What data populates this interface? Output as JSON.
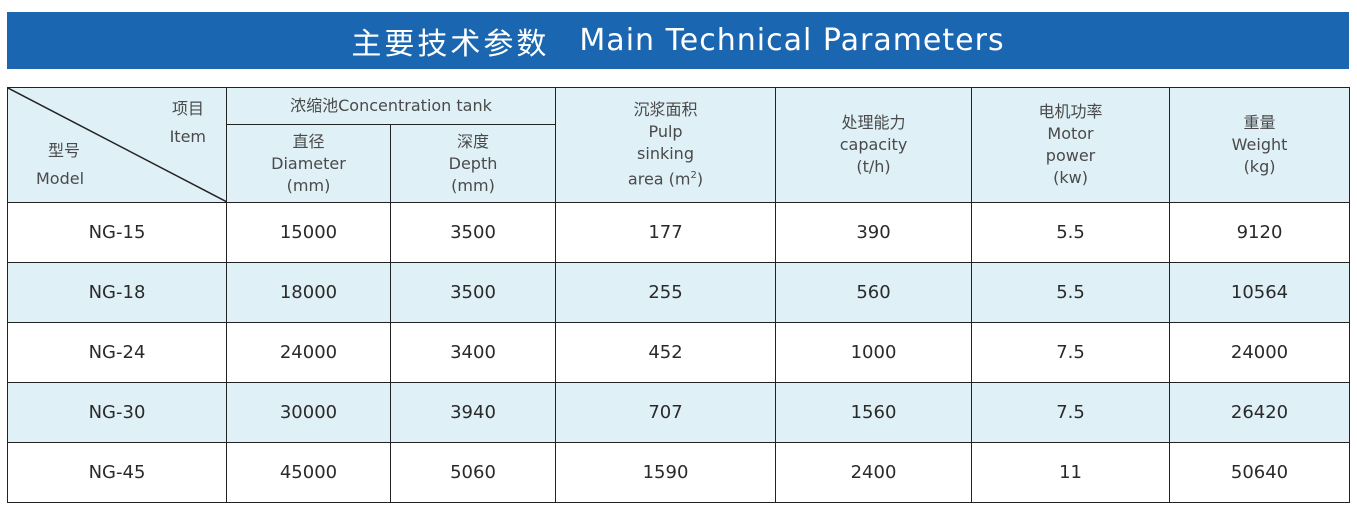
{
  "banner": {
    "title_zh": "主要技术参数",
    "title_en": "Main Technical Parameters"
  },
  "header": {
    "corner": {
      "item_zh": "项目",
      "item_en": "Item",
      "model_zh": "型号",
      "model_en": "Model"
    },
    "concentration_tank": "浓缩池Concentration tank",
    "diameter": {
      "zh": "直径",
      "en": "Diameter",
      "unit": "(mm)"
    },
    "depth": {
      "zh": "深度",
      "en": "Depth",
      "unit": "(mm)"
    },
    "pulp_area": {
      "zh": "沉浆面积",
      "en1": "Pulp",
      "en2": "sinking",
      "en3": "area (m",
      "sup": "2",
      "close": ")"
    },
    "capacity": {
      "zh": "处理能力",
      "en": "capacity",
      "unit": "(t/h)"
    },
    "motor_power": {
      "zh": "电机功率",
      "en1": "Motor",
      "en2": "power",
      "unit": "(kw)"
    },
    "weight": {
      "zh": "重量",
      "en": "Weight",
      "unit": "(kg)"
    }
  },
  "rows": [
    {
      "model": "NG-15",
      "diameter": "15000",
      "depth": "3500",
      "area": "177",
      "capacity": "390",
      "power": "5.5",
      "weight": "9120"
    },
    {
      "model": "NG-18",
      "diameter": "18000",
      "depth": "3500",
      "area": "255",
      "capacity": "560",
      "power": "5.5",
      "weight": "10564"
    },
    {
      "model": "NG-24",
      "diameter": "24000",
      "depth": "3400",
      "area": "452",
      "capacity": "1000",
      "power": "7.5",
      "weight": "24000"
    },
    {
      "model": "NG-30",
      "diameter": "30000",
      "depth": "3940",
      "area": "707",
      "capacity": "1560",
      "power": "7.5",
      "weight": "26420"
    },
    {
      "model": "NG-45",
      "diameter": "45000",
      "depth": "5060",
      "area": "1590",
      "capacity": "2400",
      "power": "11",
      "weight": "50640"
    }
  ]
}
